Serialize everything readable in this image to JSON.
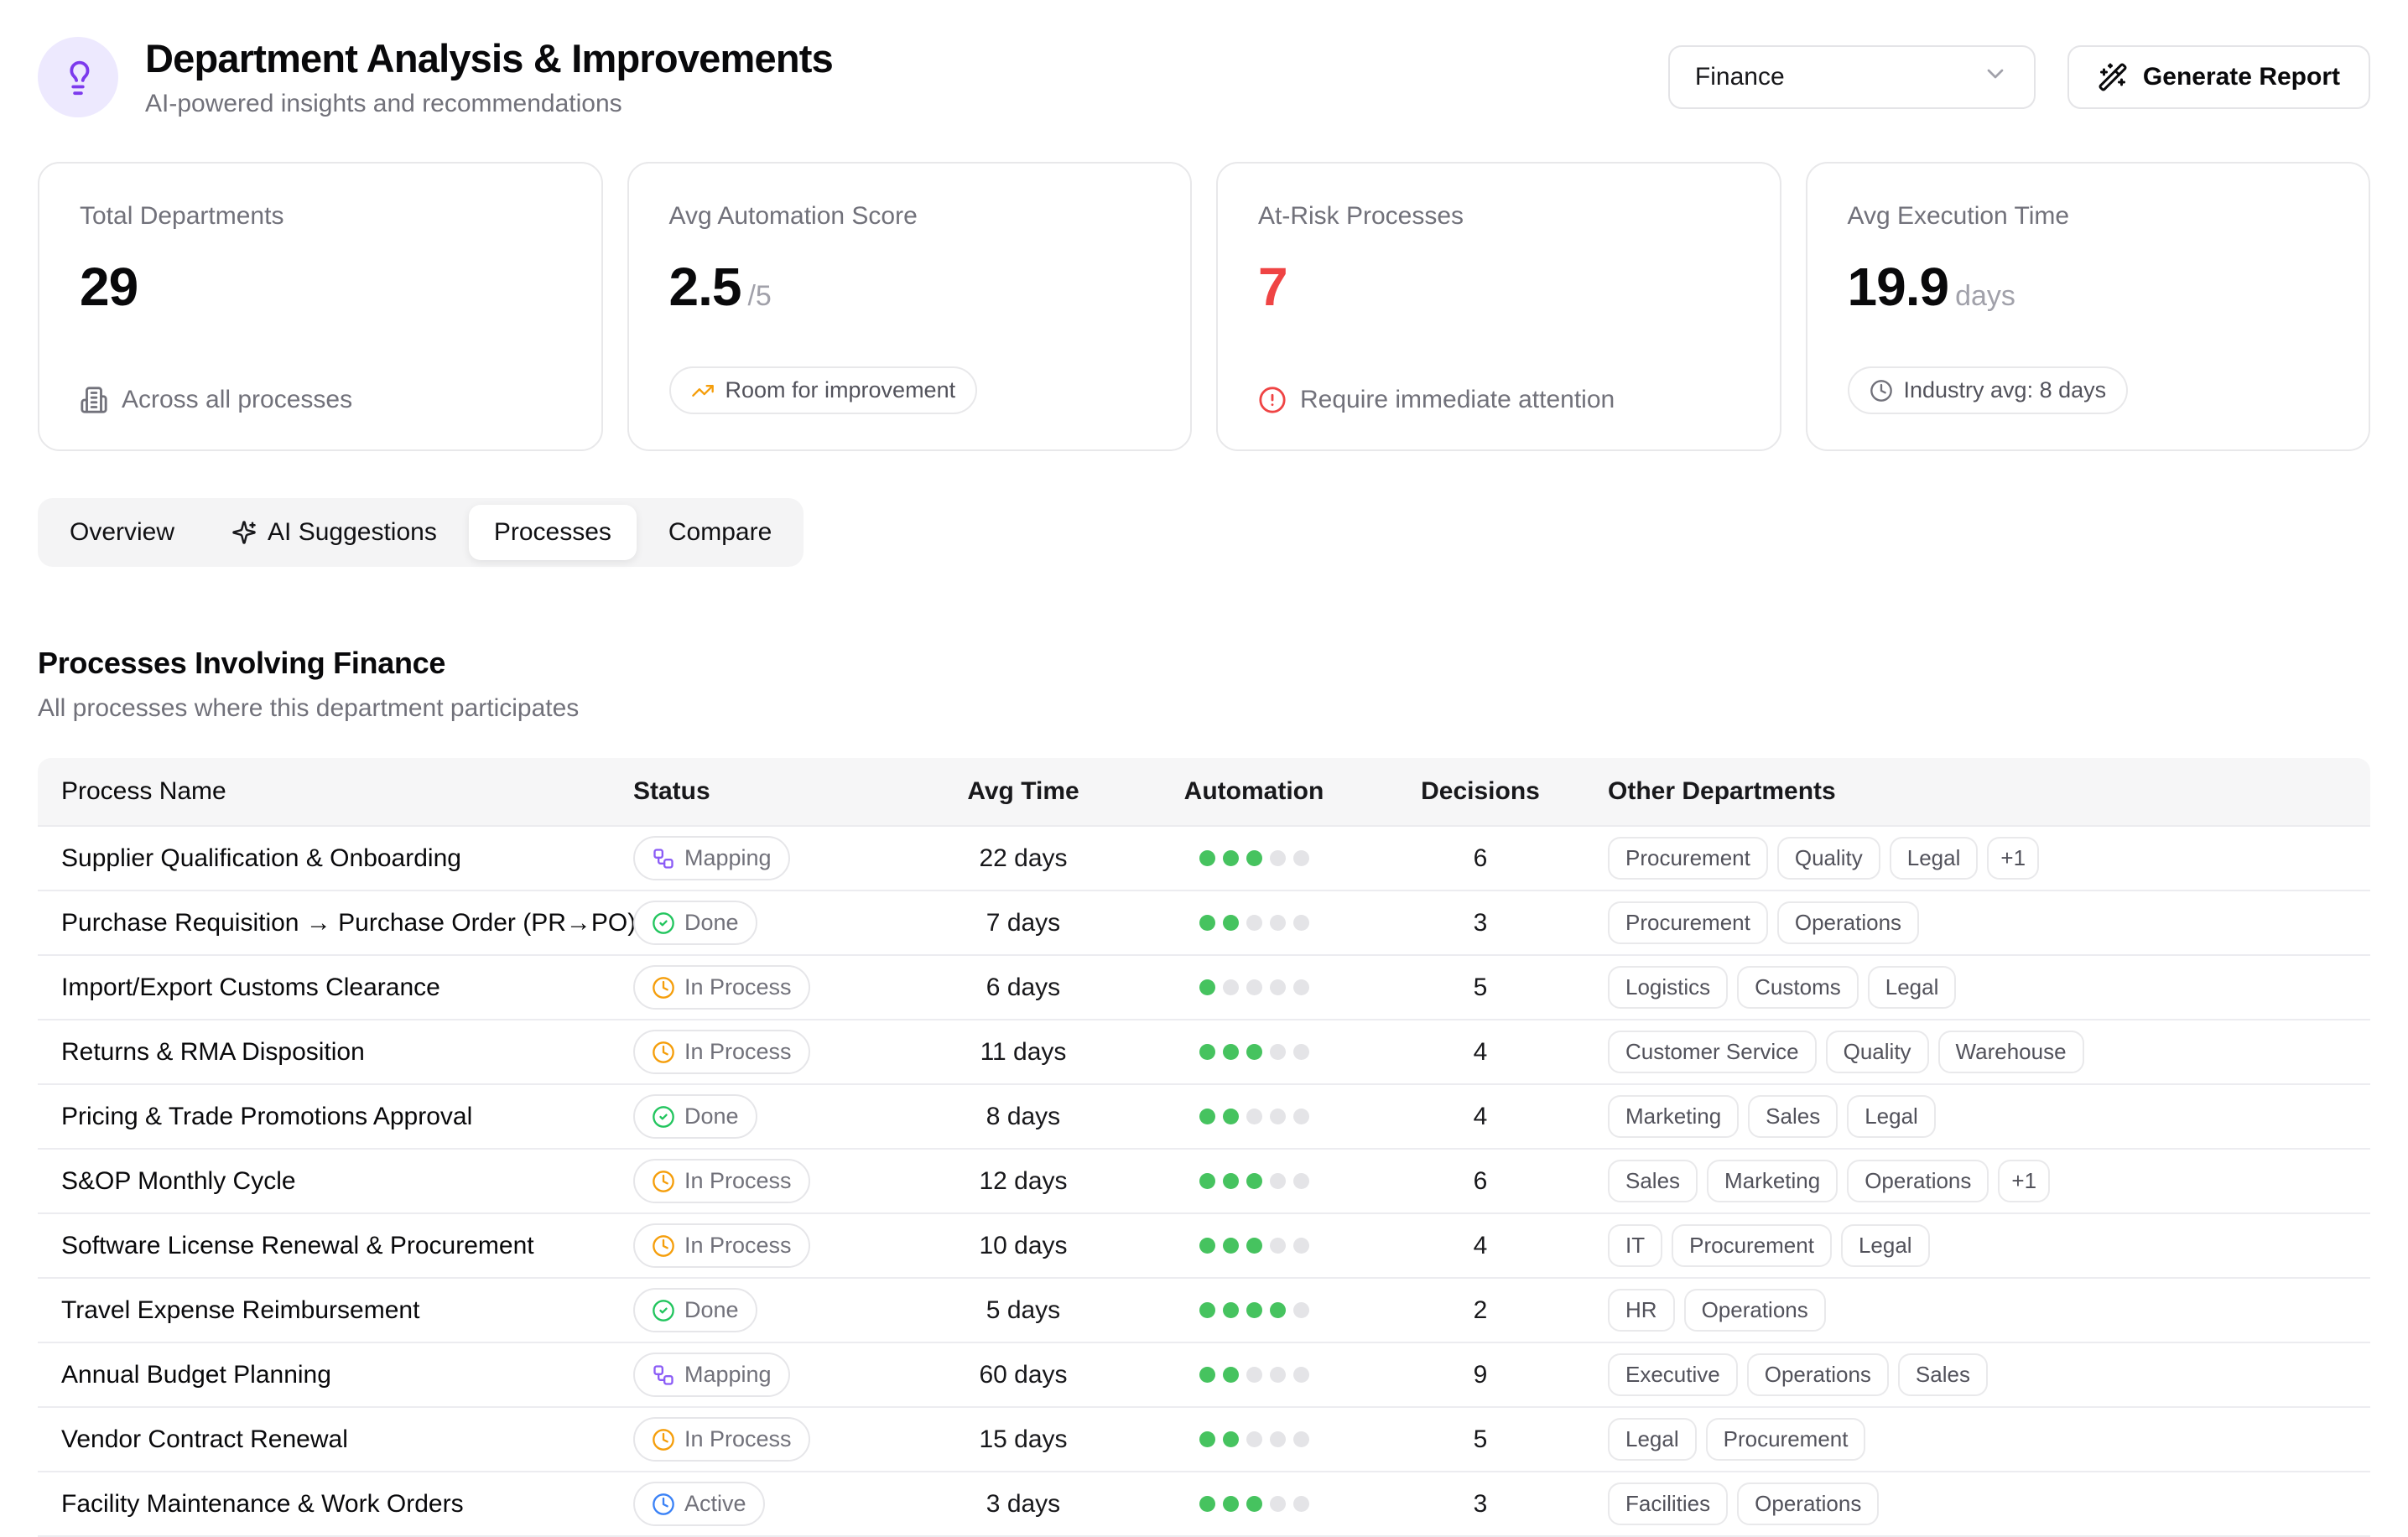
{
  "header": {
    "title": "Department Analysis & Improvements",
    "subtitle": "AI-powered insights and recommendations",
    "icon": "lightbulb-icon",
    "department_select": {
      "value": "Finance",
      "icon": "chevron-down-icon"
    },
    "generate_report": {
      "label": "Generate Report",
      "icon": "wand-icon"
    }
  },
  "colors": {
    "accent_purple": "#7c3aed",
    "badge_purple": "#8b5cf6",
    "green": "#22c55e",
    "dot_green": "#46c35f",
    "red": "#ef4444",
    "orange": "#f59e0b",
    "blue": "#3b82f6",
    "muted": "#71717a"
  },
  "stats": [
    {
      "label": "Total Departments",
      "value": "29",
      "suffix": "",
      "value_color": "#09090b",
      "footer": {
        "style": "plain",
        "icon": "building-icon",
        "icon_color": "#71717a",
        "text": "Across all processes"
      }
    },
    {
      "label": "Avg Automation Score",
      "value": "2.5",
      "suffix": "/5",
      "value_color": "#09090b",
      "footer": {
        "style": "pill",
        "icon": "trending-up-icon",
        "icon_color": "#f59e0b",
        "text": "Room for improvement"
      }
    },
    {
      "label": "At-Risk Processes",
      "value": "7",
      "suffix": "",
      "value_color": "#ef4444",
      "footer": {
        "style": "plain",
        "icon": "alert-circle-icon",
        "icon_color": "#ef4444",
        "text": "Require immediate attention"
      }
    },
    {
      "label": "Avg Execution Time",
      "value": "19.9",
      "suffix": "days",
      "value_color": "#09090b",
      "footer": {
        "style": "pill",
        "icon": "clock-icon",
        "icon_color": "#71717a",
        "text": "Industry avg: 8 days"
      }
    }
  ],
  "tabs": [
    {
      "label": "Overview",
      "active": false
    },
    {
      "label": "AI Suggestions",
      "icon": "sparkles-icon",
      "active": false
    },
    {
      "label": "Processes",
      "active": true
    },
    {
      "label": "Compare",
      "active": false
    }
  ],
  "section": {
    "title": "Processes Involving Finance",
    "subtitle": "All processes where this department participates"
  },
  "statuses": {
    "mapping": {
      "label": "Mapping",
      "icon": "workflow-icon",
      "icon_color": "#8b5cf6"
    },
    "done": {
      "label": "Done",
      "icon": "circle-check-icon",
      "icon_color": "#22c55e"
    },
    "in_process": {
      "label": "In Process",
      "icon": "clock-icon",
      "icon_color": "#f59e0b"
    },
    "active": {
      "label": "Active",
      "icon": "clock-icon",
      "icon_color": "#3b82f6"
    }
  },
  "table": {
    "columns": [
      "Process Name",
      "Status",
      "Avg Time",
      "Automation",
      "Decisions",
      "Other Departments"
    ],
    "automation_max": 5,
    "rows": [
      {
        "name": "Supplier Qualification & Onboarding",
        "status": "mapping",
        "avg_time": "22 days",
        "automation": 3,
        "decisions": "6",
        "departments": [
          "Procurement",
          "Quality",
          "Legal"
        ],
        "more": "+1"
      },
      {
        "name": "Purchase Requisition → Purchase Order (PR→PO)",
        "status": "done",
        "avg_time": "7 days",
        "automation": 2,
        "decisions": "3",
        "departments": [
          "Procurement",
          "Operations"
        ],
        "more": ""
      },
      {
        "name": "Import/Export Customs Clearance",
        "status": "in_process",
        "avg_time": "6 days",
        "automation": 1,
        "decisions": "5",
        "departments": [
          "Logistics",
          "Customs",
          "Legal"
        ],
        "more": ""
      },
      {
        "name": "Returns & RMA Disposition",
        "status": "in_process",
        "avg_time": "11 days",
        "automation": 3,
        "decisions": "4",
        "departments": [
          "Customer Service",
          "Quality",
          "Warehouse"
        ],
        "more": ""
      },
      {
        "name": "Pricing & Trade Promotions Approval",
        "status": "done",
        "avg_time": "8 days",
        "automation": 2,
        "decisions": "4",
        "departments": [
          "Marketing",
          "Sales",
          "Legal"
        ],
        "more": ""
      },
      {
        "name": "S&OP Monthly Cycle",
        "status": "in_process",
        "avg_time": "12 days",
        "automation": 3,
        "decisions": "6",
        "departments": [
          "Sales",
          "Marketing",
          "Operations"
        ],
        "more": "+1"
      },
      {
        "name": "Software License Renewal & Procurement",
        "status": "in_process",
        "avg_time": "10 days",
        "automation": 3,
        "decisions": "4",
        "departments": [
          "IT",
          "Procurement",
          "Legal"
        ],
        "more": ""
      },
      {
        "name": "Travel Expense Reimbursement",
        "status": "done",
        "avg_time": "5 days",
        "automation": 4,
        "decisions": "2",
        "departments": [
          "HR",
          "Operations"
        ],
        "more": ""
      },
      {
        "name": "Annual Budget Planning",
        "status": "mapping",
        "avg_time": "60 days",
        "automation": 2,
        "decisions": "9",
        "departments": [
          "Executive",
          "Operations",
          "Sales"
        ],
        "more": ""
      },
      {
        "name": "Vendor Contract Renewal",
        "status": "in_process",
        "avg_time": "15 days",
        "automation": 2,
        "decisions": "5",
        "departments": [
          "Legal",
          "Procurement"
        ],
        "more": ""
      },
      {
        "name": "Facility Maintenance & Work Orders",
        "status": "active",
        "avg_time": "3 days",
        "automation": 3,
        "decisions": "3",
        "departments": [
          "Facilities",
          "Operations"
        ],
        "more": ""
      }
    ]
  }
}
